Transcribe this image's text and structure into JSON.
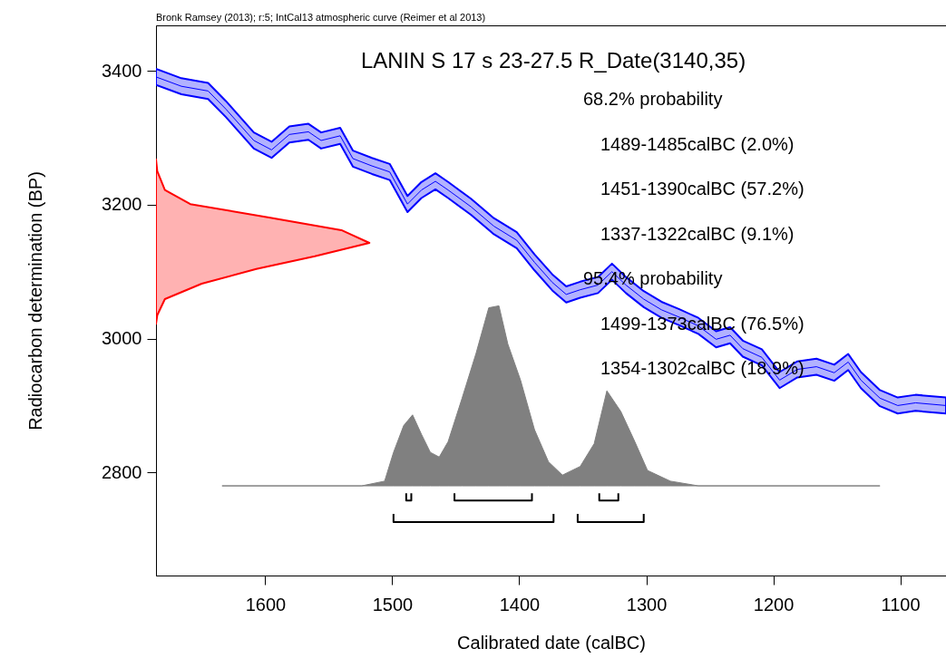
{
  "chart_data": {
    "type": "line",
    "title": "LANIN S 17 s 23-27.5 R_Date(3140,35)",
    "xlabel": "Calibrated date (calBC)",
    "ylabel": "Radiocarbon determination (BP)",
    "annotations": [
      "Bronk Ramsey (2013); r:5; IntCal13 atmospheric curve (Reimer et al 2013)",
      "68.2% probability",
      "1489-1485calBC (2.0%)",
      "1451-1390calBC (57.2%)",
      "1337-1322calBC (9.1%)",
      "95.4% probability",
      "1499-1373calBC (76.5%)",
      "1354-1302calBC (18.9%)"
    ],
    "xlim": [
      1686,
      1064
    ],
    "ylim": [
      2646,
      3468
    ],
    "xticks": [
      1600,
      1500,
      1400,
      1300,
      1200,
      1100
    ],
    "yticks": [
      2800,
      3000,
      3200,
      3400
    ],
    "grid": false,
    "series": [
      {
        "color": "#0000ff",
        "x": [
          1686,
          1666,
          1645,
          1631,
          1609,
          1595,
          1581,
          1566,
          1556,
          1541,
          1531,
          1516,
          1502,
          1488,
          1477,
          1466,
          1456,
          1438,
          1420,
          1402,
          1388,
          1374,
          1363,
          1352,
          1338,
          1327,
          1316,
          1302,
          1288,
          1274,
          1259,
          1245,
          1234,
          1224,
          1209,
          1195,
          1181,
          1166,
          1152,
          1141,
          1131,
          1116,
          1102,
          1088,
          1064
        ],
        "values": [
          3391,
          3377,
          3370,
          3343,
          3296,
          3282,
          3305,
          3309,
          3296,
          3303,
          3269,
          3258,
          3249,
          3201,
          3222,
          3235,
          3222,
          3197,
          3168,
          3147,
          3114,
          3084,
          3066,
          3073,
          3080,
          3100,
          3080,
          3059,
          3043,
          3032,
          3019,
          2999,
          3005,
          2985,
          2972,
          2938,
          2954,
          2958,
          2949,
          2965,
          2938,
          2911,
          2900,
          2904,
          2900
        ],
        "lower": [
          3379,
          3365,
          3358,
          3331,
          3284,
          3270,
          3293,
          3297,
          3284,
          3291,
          3257,
          3246,
          3237,
          3189,
          3210,
          3223,
          3210,
          3185,
          3156,
          3135,
          3102,
          3072,
          3054,
          3061,
          3068,
          3088,
          3068,
          3047,
          3031,
          3020,
          3007,
          2987,
          2993,
          2973,
          2960,
          2926,
          2942,
          2946,
          2937,
          2953,
          2926,
          2899,
          2888,
          2892,
          2888
        ],
        "upper": [
          3403,
          3389,
          3382,
          3355,
          3308,
          3294,
          3317,
          3321,
          3308,
          3315,
          3281,
          3270,
          3261,
          3213,
          3234,
          3247,
          3234,
          3209,
          3180,
          3159,
          3126,
          3096,
          3078,
          3085,
          3092,
          3112,
          3092,
          3071,
          3055,
          3044,
          3031,
          3011,
          3017,
          2997,
          2984,
          2950,
          2966,
          2970,
          2961,
          2977,
          2950,
          2923,
          2912,
          2916,
          2912
        ]
      },
      {
        "type": "area",
        "color": "#808080",
        "x": [
          1634,
          1524,
          1506,
          1499,
          1491,
          1484,
          1477,
          1470,
          1463,
          1456,
          1445,
          1434,
          1424,
          1416,
          1409,
          1399,
          1388,
          1377,
          1366,
          1352,
          1341,
          1331,
          1320,
          1309,
          1299,
          1281,
          1259,
          1116
        ],
        "values": [
          2780,
          2780,
          2787,
          2830,
          2870,
          2886,
          2857,
          2830,
          2823,
          2846,
          2911,
          2978,
          3046,
          3049,
          2992,
          2938,
          2864,
          2816,
          2796,
          2809,
          2843,
          2922,
          2891,
          2846,
          2803,
          2787,
          2780,
          2780
        ]
      },
      {
        "type": "area",
        "color": "#ff0000",
        "x": [
          1686,
          1685,
          1679,
          1659,
          1597,
          1540,
          1518,
          1561,
          1607,
          1650,
          1679,
          1685,
          1686
        ],
        "values": [
          3268,
          3250,
          3222,
          3201,
          3181,
          3162,
          3143,
          3123,
          3104,
          3082,
          3059,
          3035,
          3022
        ]
      },
      {
        "color": "#000000",
        "x": [
          1489,
          1489,
          1485,
          1485
        ],
        "values": [
          2769,
          2758,
          2758,
          2769
        ]
      },
      {
        "color": "#000000",
        "x": [
          1451,
          1451,
          1390,
          1390
        ],
        "values": [
          2769,
          2758,
          2758,
          2769
        ]
      },
      {
        "color": "#000000",
        "x": [
          1337,
          1337,
          1322,
          1322
        ],
        "values": [
          2769,
          2758,
          2758,
          2769
        ]
      },
      {
        "color": "#000000",
        "x": [
          1499,
          1499,
          1373,
          1373
        ],
        "values": [
          2738,
          2726,
          2726,
          2738
        ]
      },
      {
        "color": "#000000",
        "x": [
          1354,
          1354,
          1302,
          1302
        ],
        "values": [
          2738,
          2726,
          2726,
          2738
        ]
      }
    ]
  }
}
